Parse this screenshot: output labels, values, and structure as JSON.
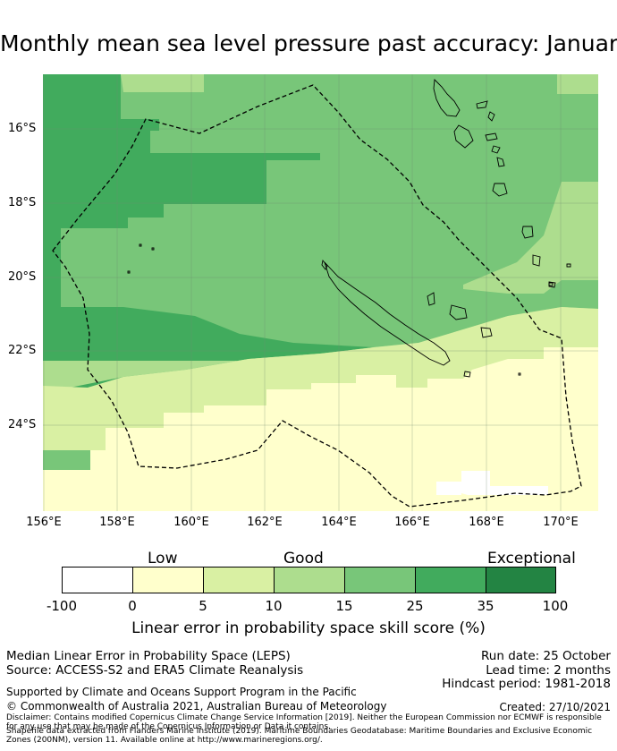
{
  "title": "Monthly mean sea level pressure past accuracy: January",
  "map": {
    "lat_labels": [
      "16°S",
      "18°S",
      "20°S",
      "22°S",
      "24°S"
    ],
    "lon_labels": [
      "156°E",
      "158°E",
      "160°E",
      "162°E",
      "164°E",
      "166°E",
      "168°E",
      "170°E"
    ],
    "colors": {
      "c0": "#ffffff",
      "c1": "#ffffcc",
      "c2": "#d9f0a3",
      "c3": "#addd8e",
      "c4": "#78c679",
      "c5": "#41ab5d",
      "c6": "#238443",
      "outline": "#000000",
      "grid": "#6e8a6e"
    }
  },
  "legend": {
    "categories": [
      "Low",
      "Good",
      "Exceptional"
    ],
    "ticks": [
      "-100",
      "0",
      "5",
      "10",
      "15",
      "25",
      "35",
      "100"
    ],
    "label": "Linear error in probability space skill score (%)"
  },
  "footer": {
    "method": "Median Linear Error in Probability Space (LEPS)",
    "source": "Source: ACCESS-S2 and ERA5 Climate Reanalysis",
    "run_date": "Run date: 25 October",
    "lead_time": "Lead time: 2 months",
    "hindcast": "Hindcast period: 1981-2018",
    "supported": "Supported by Climate and Oceans Support Program in the Pacific",
    "copyright": "© Commonwealth of Australia 2021, Australian Bureau of Meteorology",
    "created": "Created: 27/10/2021",
    "disclaimer": "Disclaimer: Contains modified Copernicus Climate Change Service Information [2019]. Neither the European Commission nor ECMWF is responsible for any use that may be made of the Copernicus Information or Data it contains.",
    "shapefile": "Shapefile data extracted from Flanders Marine Institute (2019). Maritime Boundaries Geodatabase: Maritime Boundaries and Exclusive Economic Zones (200NM), version 11. Available online at http://www.marineregions.org/."
  }
}
